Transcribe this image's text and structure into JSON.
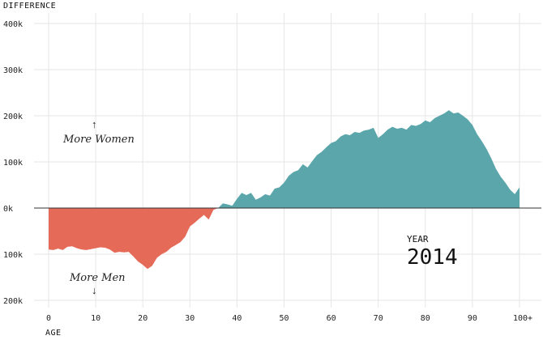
{
  "chart_data": {
    "type": "area",
    "ylabel": "DIFFERENCE",
    "xlabel": "AGE",
    "xlim": [
      0,
      100
    ],
    "ylim": [
      -200000,
      400000
    ],
    "x_ticks": [
      0,
      10,
      20,
      30,
      40,
      50,
      60,
      70,
      80,
      90,
      100
    ],
    "x_tick_labels": [
      "0",
      "10",
      "20",
      "30",
      "40",
      "50",
      "60",
      "70",
      "80",
      "90",
      "100+"
    ],
    "y_ticks": [
      400000,
      300000,
      200000,
      100000,
      0,
      -100000,
      -200000
    ],
    "y_tick_labels": [
      "400k",
      "300k",
      "200k",
      "100k",
      "0k",
      "100k",
      "200k"
    ],
    "grid": true,
    "colors": {
      "positive": "#5aa6aa",
      "negative": "#e56a58",
      "zero_line": "#333333",
      "grid": "#e6e6e6"
    },
    "annotations": [
      {
        "text": "More Women",
        "arrow": "↑"
      },
      {
        "text": "More Men",
        "arrow": "↓"
      }
    ],
    "year_label": "YEAR",
    "year_value": "2014",
    "x": [
      0,
      1,
      2,
      3,
      4,
      5,
      6,
      7,
      8,
      9,
      10,
      11,
      12,
      13,
      14,
      15,
      16,
      17,
      18,
      19,
      20,
      21,
      22,
      23,
      24,
      25,
      26,
      27,
      28,
      29,
      30,
      31,
      32,
      33,
      34,
      35,
      36,
      37,
      38,
      39,
      40,
      41,
      42,
      43,
      44,
      45,
      46,
      47,
      48,
      49,
      50,
      51,
      52,
      53,
      54,
      55,
      56,
      57,
      58,
      59,
      60,
      61,
      62,
      63,
      64,
      65,
      66,
      67,
      68,
      69,
      70,
      71,
      72,
      73,
      74,
      75,
      76,
      77,
      78,
      79,
      80,
      81,
      82,
      83,
      84,
      85,
      86,
      87,
      88,
      89,
      90,
      91,
      92,
      93,
      94,
      95,
      96,
      97,
      98,
      99,
      100
    ],
    "values": [
      -90000,
      -91000,
      -88000,
      -91000,
      -84000,
      -83000,
      -87000,
      -90000,
      -91000,
      -89000,
      -87000,
      -85000,
      -86000,
      -90000,
      -97000,
      -95000,
      -96000,
      -95000,
      -105000,
      -116000,
      -123000,
      -132000,
      -125000,
      -108000,
      -100000,
      -95000,
      -86000,
      -80000,
      -74000,
      -62000,
      -40000,
      -32000,
      -23000,
      -15000,
      -25000,
      -4000,
      0,
      10000,
      8000,
      5000,
      20000,
      33000,
      28000,
      33000,
      18000,
      23000,
      30000,
      27000,
      42000,
      45000,
      55000,
      70000,
      78000,
      82000,
      95000,
      88000,
      102000,
      115000,
      122000,
      132000,
      141000,
      145000,
      155000,
      160000,
      158000,
      165000,
      163000,
      168000,
      170000,
      174000,
      152000,
      160000,
      170000,
      176000,
      172000,
      174000,
      170000,
      180000,
      178000,
      182000,
      190000,
      186000,
      195000,
      200000,
      205000,
      212000,
      205000,
      207000,
      200000,
      192000,
      180000,
      160000,
      145000,
      128000,
      108000,
      85000,
      68000,
      55000,
      40000,
      30000,
      45000
    ]
  }
}
